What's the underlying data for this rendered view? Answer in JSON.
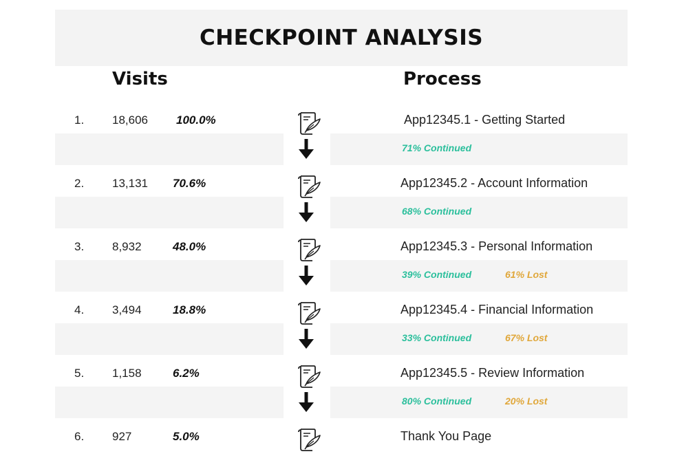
{
  "title": "CHECKPOINT ANALYSIS",
  "columns": {
    "visits": "Visits",
    "process": "Process"
  },
  "colors": {
    "continued": "#2bbf9c",
    "lost": "#e0a73a",
    "band": "#f4f4f4"
  },
  "icon": "document-quill-icon",
  "steps": [
    {
      "num": "1.",
      "visits": "18,606",
      "pct": "100.0%",
      "process": "App12345.1 - Getting Started"
    },
    {
      "num": "2.",
      "visits": "13,131",
      "pct": "70.6%",
      "process": "App12345.2 - Account Information"
    },
    {
      "num": "3.",
      "visits": "8,932",
      "pct": "48.0%",
      "process": "App12345.3 - Personal Information"
    },
    {
      "num": "4.",
      "visits": "3,494",
      "pct": "18.8%",
      "process": "App12345.4 - Financial Information"
    },
    {
      "num": "5.",
      "visits": "1,158",
      "pct": "6.2%",
      "process": "App12345.5 - Review Information"
    },
    {
      "num": "6.",
      "visits": "927",
      "pct": "5.0%",
      "process": "Thank You Page"
    }
  ],
  "transitions": [
    {
      "continued": "71% Continued",
      "lost": ""
    },
    {
      "continued": "68% Continued",
      "lost": ""
    },
    {
      "continued": "39% Continued",
      "lost": "61% Lost"
    },
    {
      "continued": "33% Continued",
      "lost": "67% Lost"
    },
    {
      "continued": "80% Continued",
      "lost": "20% Lost"
    }
  ]
}
